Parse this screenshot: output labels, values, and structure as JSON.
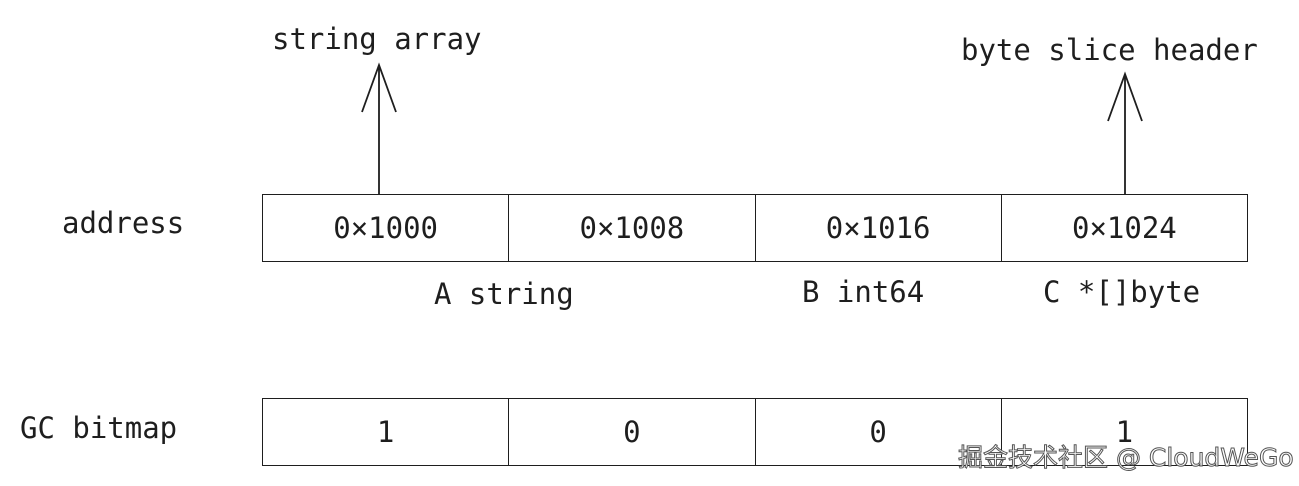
{
  "labels": {
    "string_array": "string array",
    "byte_slice_header": "byte slice header",
    "address": "address",
    "gc_bitmap": "GC bitmap"
  },
  "addresses": [
    "0×1000",
    "0×1008",
    "0×1016",
    "0×1024"
  ],
  "fields": {
    "a": "A string",
    "b": "B int64",
    "c": "C *[]byte"
  },
  "bitmap": [
    "1",
    "0",
    "0",
    "1"
  ],
  "watermark": "掘金技术社区 @ CloudWeGo"
}
